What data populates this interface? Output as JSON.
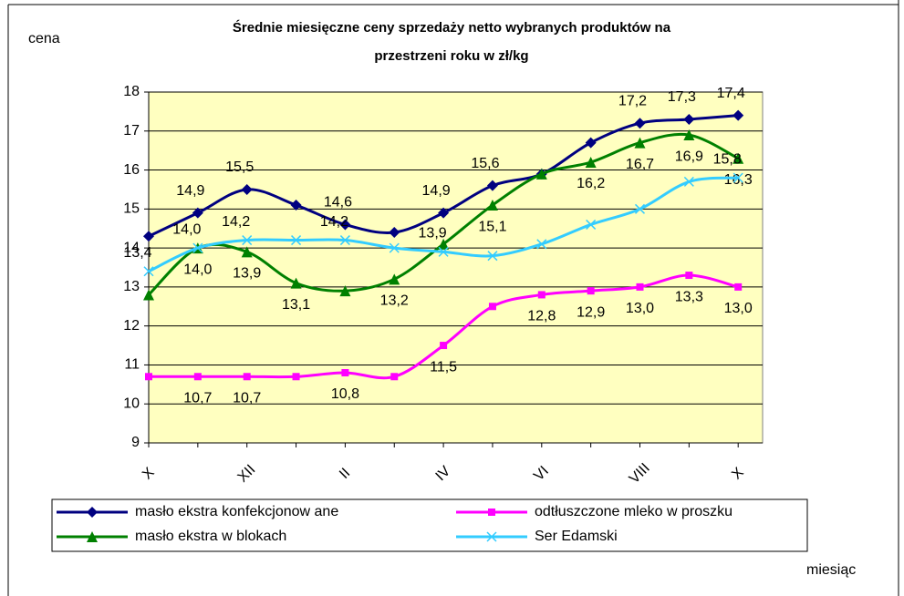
{
  "chart_data": {
    "type": "line",
    "title": "Średnie miesięczne ceny sprzedaży netto  wybranych produktów na",
    "subtitle": "przestrzeni roku w zł/kg",
    "y_label": "cena",
    "x_label": "miesiąc",
    "categories": [
      "X",
      null,
      "XII",
      null,
      "II",
      null,
      "IV",
      null,
      "VI",
      null,
      "VIII",
      null,
      "X"
    ],
    "ylim": [
      9,
      18
    ],
    "yticks": [
      9,
      10,
      11,
      12,
      13,
      14,
      15,
      16,
      17,
      18
    ],
    "grid": true,
    "legend_position": "bottom",
    "series": [
      {
        "name": "masło ekstra konfekcjonow ane",
        "color": "#000080",
        "marker": "diamond",
        "values": [
          14.3,
          14.9,
          15.5,
          15.1,
          14.6,
          14.4,
          14.9,
          15.6,
          15.9,
          16.7,
          17.2,
          17.3,
          17.4
        ],
        "value_labels": [
          null,
          "14,9",
          "15,5",
          null,
          "14,6",
          null,
          "14,9",
          "15,6",
          null,
          null,
          "17,2",
          "17,3",
          "17,4"
        ]
      },
      {
        "name": "odtłuszczone mleko w  proszku",
        "color": "#ff00ff",
        "marker": "square",
        "values": [
          10.7,
          10.7,
          10.7,
          10.7,
          10.8,
          10.7,
          11.5,
          12.5,
          12.8,
          12.9,
          13.0,
          13.3,
          13.0
        ],
        "value_labels": [
          null,
          "10,7",
          "10,7",
          null,
          "10,8",
          null,
          "11,5",
          null,
          "12,8",
          "12,9",
          "13,0",
          "13,3",
          "13,0"
        ]
      },
      {
        "name": "masło ekstra w  blokach",
        "color": "#008000",
        "marker": "triangle",
        "values": [
          12.8,
          14.0,
          13.9,
          13.1,
          12.9,
          13.2,
          14.1,
          15.1,
          15.9,
          16.2,
          16.7,
          16.9,
          16.3
        ],
        "value_labels": [
          null,
          "14,0",
          "13,9",
          "13,1",
          null,
          "13,2",
          null,
          "15,1",
          null,
          "16,2",
          "16,7",
          "16,9",
          "16,3"
        ]
      },
      {
        "name": "Ser Edamski",
        "color": "#33ccff",
        "marker": "x",
        "values": [
          13.4,
          14.0,
          14.2,
          14.2,
          14.2,
          14.0,
          13.9,
          13.8,
          14.1,
          14.6,
          15.0,
          15.7,
          15.8
        ],
        "value_labels": [
          "13,4",
          "14,0",
          "14,2",
          null,
          "14,2",
          null,
          "13,9",
          null,
          null,
          null,
          null,
          null,
          "15,8"
        ]
      }
    ]
  }
}
